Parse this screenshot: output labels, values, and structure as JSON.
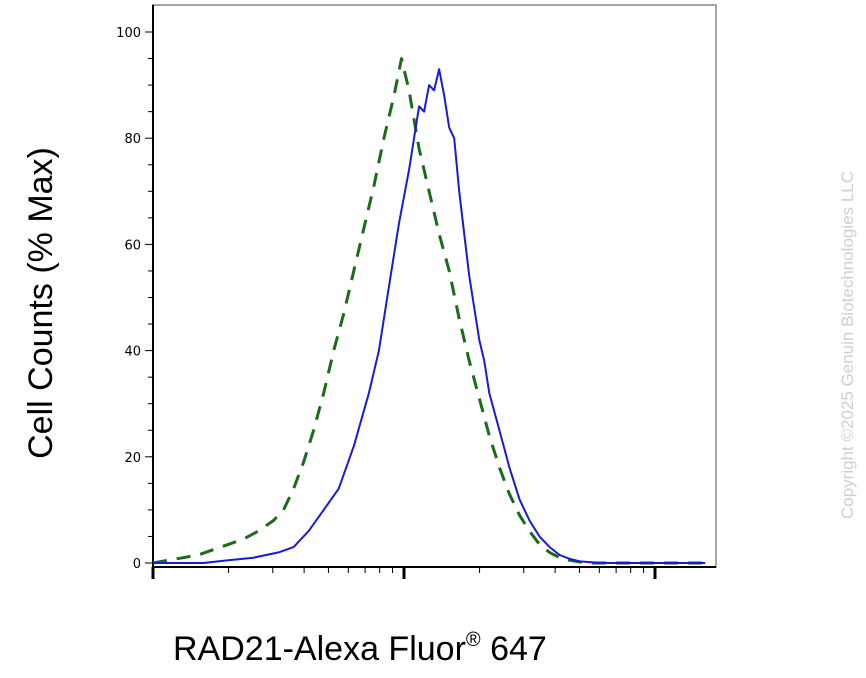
{
  "chart_data": {
    "type": "line",
    "xlabel": "RAD21-Alexa Fluor",
    "xlabel_superscript": "®",
    "xlabel_suffix": " 647",
    "ylabel": "Cell Counts (% Max)",
    "x_scale": "log",
    "x_tick_labels": [],
    "y_ticks": [
      0,
      20,
      40,
      60,
      80,
      100
    ],
    "ylim": [
      0,
      105
    ],
    "xlim_decades": [
      0,
      2.25
    ],
    "grid": false,
    "series": [
      {
        "style": "dashed",
        "color": "#1a6b1a",
        "x": [
          0.0,
          0.06,
          0.12,
          0.18,
          0.24,
          0.3,
          0.36,
          0.42,
          0.48,
          0.52,
          0.56,
          0.6,
          0.64,
          0.68,
          0.72,
          0.76,
          0.8,
          0.84,
          0.88,
          0.92,
          0.96,
          0.99,
          1.02,
          1.06,
          1.1,
          1.14,
          1.18,
          1.22,
          1.26,
          1.3,
          1.34,
          1.38,
          1.42,
          1.46,
          1.5,
          1.54,
          1.58,
          1.62,
          1.66,
          1.7,
          1.74,
          1.8,
          1.86,
          1.92,
          1.98,
          2.05,
          2.12,
          2.2
        ],
        "y": [
          0,
          0.5,
          1,
          1.5,
          2.5,
          3.5,
          4.5,
          6,
          8,
          10,
          14,
          19,
          25,
          32,
          40,
          47,
          55,
          63,
          71,
          80,
          88,
          95,
          89,
          78,
          70,
          62,
          55,
          46,
          38,
          31,
          24,
          18,
          13,
          9,
          6,
          3.5,
          2,
          1,
          0.5,
          0.2,
          0,
          0,
          0,
          0,
          0,
          0,
          0,
          0
        ]
      },
      {
        "style": "solid",
        "color": "#1a1ad6",
        "x": [
          0.0,
          0.1,
          0.2,
          0.3,
          0.4,
          0.5,
          0.56,
          0.62,
          0.68,
          0.74,
          0.8,
          0.86,
          0.9,
          0.94,
          0.98,
          1.02,
          1.06,
          1.08,
          1.1,
          1.12,
          1.14,
          1.16,
          1.18,
          1.2,
          1.22,
          1.24,
          1.26,
          1.28,
          1.3,
          1.32,
          1.34,
          1.38,
          1.42,
          1.46,
          1.5,
          1.54,
          1.58,
          1.62,
          1.66,
          1.7,
          1.76,
          1.82,
          1.9,
          2.0,
          2.1,
          2.2
        ],
        "y": [
          0,
          0,
          0,
          0.5,
          1,
          2,
          3,
          6,
          10,
          14,
          22,
          32,
          40,
          52,
          64,
          74,
          86,
          85,
          90,
          89,
          93,
          88,
          82,
          80,
          70,
          62,
          54,
          48,
          42,
          38,
          32,
          25,
          18,
          12,
          8,
          5,
          3,
          1.5,
          0.8,
          0.3,
          0.1,
          0,
          0,
          0,
          0,
          0
        ]
      }
    ]
  },
  "watermark": "Copyright ©2025 Genuin Biotechnologies LLC"
}
